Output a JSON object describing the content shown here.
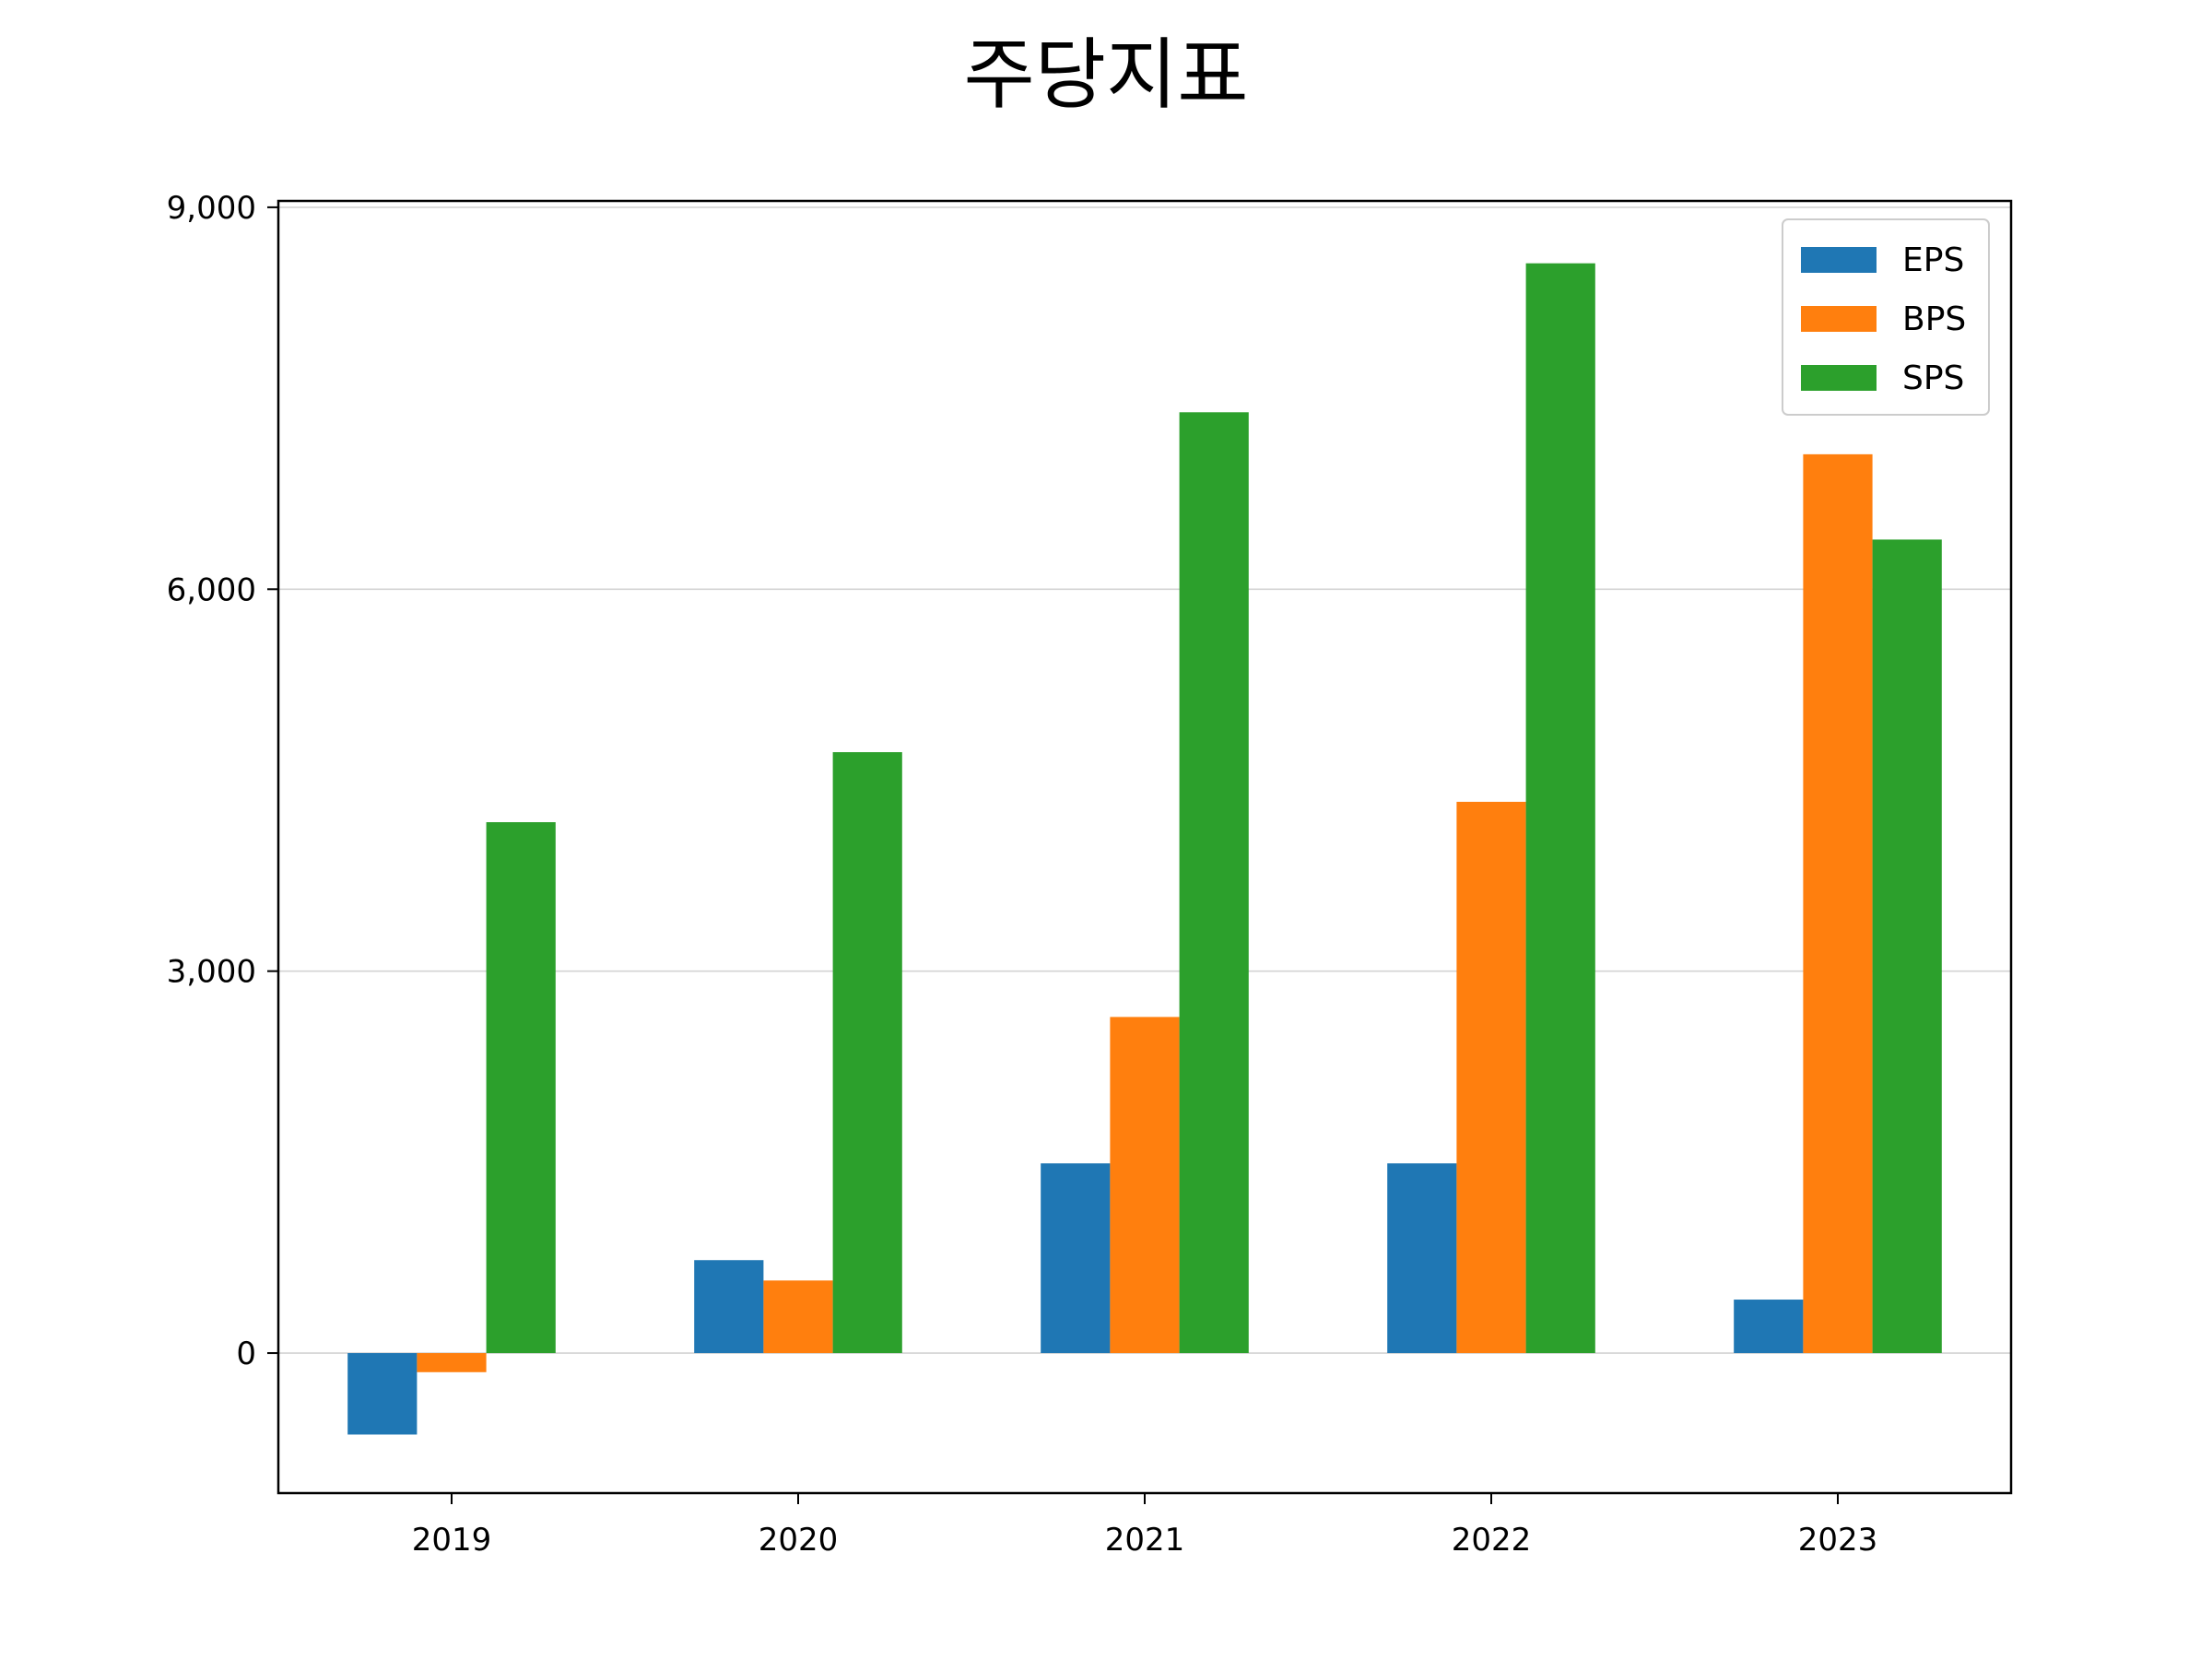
{
  "chart_data": {
    "type": "bar",
    "title": "주당지표",
    "xlabel": "",
    "ylabel": "",
    "categories": [
      "2019",
      "2020",
      "2021",
      "2022",
      "2023"
    ],
    "series": [
      {
        "name": "EPS",
        "color": "#1f77b4",
        "values": [
          -640,
          730,
          1490,
          1490,
          420
        ]
      },
      {
        "name": "BPS",
        "color": "#ff7f0e",
        "values": [
          -150,
          570,
          2640,
          4330,
          7060
        ]
      },
      {
        "name": "SPS",
        "color": "#2ca02c",
        "values": [
          4170,
          4720,
          7390,
          8560,
          6390
        ]
      }
    ],
    "ylim": [
      -1100,
      9050
    ],
    "yticks": [
      0,
      3000,
      6000,
      9000
    ],
    "ytick_labels": [
      "0",
      "3,000",
      "6,000",
      "9,000"
    ],
    "grid": "horizontal",
    "legend_position": "top-right"
  }
}
